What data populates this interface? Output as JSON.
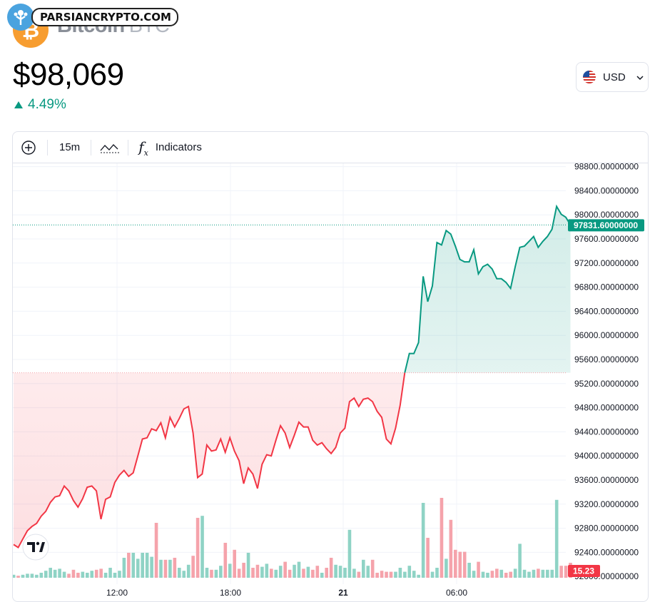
{
  "header": {
    "coin_icon_text": "₿",
    "coin_name": "Bitcoin",
    "coin_symbol": "BTC",
    "watermark": "PARSIANCRYPTO.COM",
    "price": "$98,069",
    "change": "4.49%",
    "currency": "USD"
  },
  "toolbar": {
    "interval": "15m",
    "indicators_label": "Indicators"
  },
  "colors": {
    "up": "#089981",
    "down": "#f23645",
    "up_volume": "#8fd3c5",
    "down_volume": "#f5a3ab",
    "grid": "#f0f3fa",
    "text": "#131722"
  },
  "chart_data": {
    "type": "line",
    "y_axis_labels": [
      "98800.00000000",
      "98400.00000000",
      "98000.00000000",
      "97600.00000000",
      "97200.00000000",
      "96800.00000000",
      "96400.00000000",
      "96000.00000000",
      "95600.00000000",
      "95200.00000000",
      "94800.00000000",
      "94400.00000000",
      "94000.00000000",
      "93600.00000000",
      "93200.00000000",
      "92800.00000000",
      "92400.00000000",
      "92000.00000000"
    ],
    "x_axis_labels": [
      "12:00",
      "18:00",
      "21",
      "06:00"
    ],
    "baseline": 95380,
    "last_price_label": "97831.60000000",
    "last_price": 97831.6,
    "volume_label": "15.23",
    "ylim": [
      92000,
      98800
    ],
    "series": [
      {
        "values": [
          92530,
          92480,
          92620,
          92760,
          92830,
          92880,
          93000,
          93080,
          93230,
          93320,
          93340,
          93500,
          93420,
          93260,
          93150,
          93290,
          93480,
          93500,
          93420,
          92950,
          93280,
          93320,
          93560,
          93680,
          93760,
          93660,
          93720,
          94000,
          94280,
          94300,
          94450,
          94420,
          94550,
          94300,
          94640,
          94480,
          94620,
          94780,
          94820,
          94380,
          93640,
          93700,
          94180,
          94080,
          94100,
          94280,
          94060,
          94300,
          94080,
          93920,
          93540,
          93800,
          93700,
          93460,
          93860,
          94020,
          94000,
          94260,
          94500,
          94380,
          94140,
          94340,
          94560,
          94480,
          94480,
          94260,
          94180,
          94220,
          94120,
          94040,
          94140,
          94380,
          94460,
          94900,
          94960,
          94820,
          94940,
          94960,
          94900,
          94740,
          94640,
          94280,
          94200,
          94460,
          94840,
          95380,
          95700,
          95700,
          95880,
          96980,
          96560,
          96820,
          97540,
          97500,
          97740,
          97680,
          97480,
          97260,
          97220,
          97220,
          97420,
          97020,
          97140,
          97180,
          97100,
          96940,
          96940,
          96880,
          96780,
          97140,
          97460,
          97480,
          97560,
          97640,
          97460,
          97560,
          97640,
          97760,
          98140,
          98010,
          97960,
          97831.6
        ]
      },
      {
        "name": "Volume",
        "values": [
          3,
          2,
          3,
          4,
          4,
          3,
          5,
          7,
          10,
          8,
          9,
          6,
          4,
          8,
          5,
          6,
          5,
          7,
          8,
          9,
          5,
          10,
          5,
          7,
          20,
          25,
          25,
          19,
          25,
          25,
          21,
          55,
          18,
          18,
          18,
          20,
          10,
          7,
          13,
          22,
          60,
          62,
          10,
          8,
          8,
          12,
          35,
          14,
          28,
          9,
          15,
          25,
          10,
          13,
          11,
          14,
          9,
          8,
          12,
          16,
          8,
          13,
          16,
          9,
          11,
          8,
          12,
          5,
          10,
          20,
          13,
          12,
          10,
          48,
          9,
          6,
          18,
          12,
          18,
          5,
          7,
          6,
          6,
          6,
          10,
          6,
          12,
          7,
          3,
          75,
          40,
          6,
          10,
          80,
          19,
          58,
          28,
          26,
          26,
          15,
          7,
          16,
          6,
          5,
          7,
          9,
          8,
          5,
          6,
          9,
          34,
          8,
          6,
          8,
          9,
          8,
          8,
          8,
          78,
          12,
          12,
          15
        ]
      }
    ]
  }
}
